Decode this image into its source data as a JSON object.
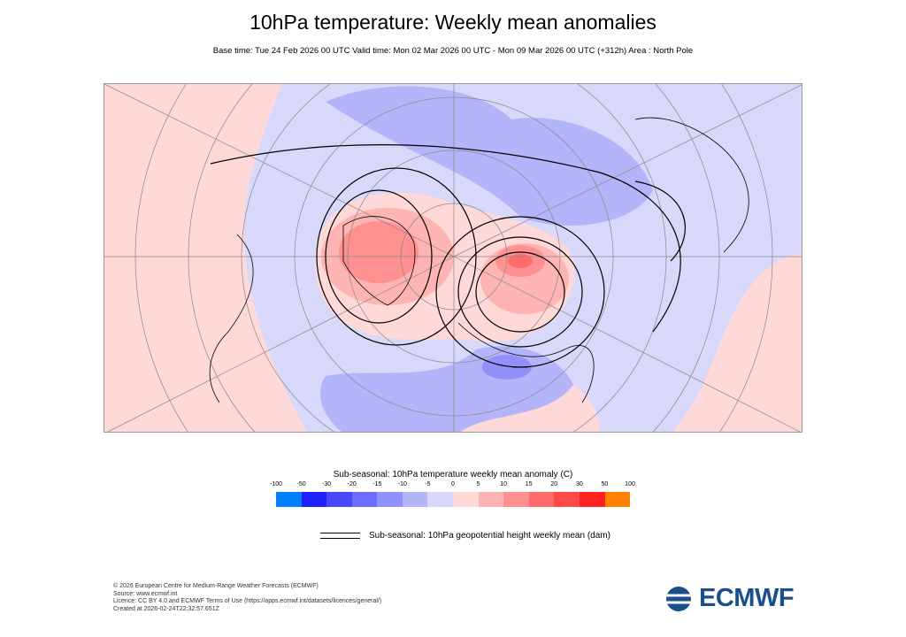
{
  "title": "10hPa temperature: Weekly mean anomalies",
  "subtitle": "Base time: Tue 24 Feb 2026 00 UTC Valid time: Mon 02 Mar 2026 00 UTC - Mon 09 Mar 2026 00 UTC (+312h) Area : North Pole",
  "map": {
    "projection": "polar stereographic",
    "area": "North Pole",
    "colors": {
      "background": "#d8d8fb",
      "warm_weak": "#ffd8d8",
      "cold_weak": "#b4b4fa",
      "cold": "#9090f8",
      "warm": "#ff9090",
      "warm_strong": "#ff6868"
    }
  },
  "colorbar": {
    "title": "Sub-seasonal: 10hPa temperature weekly mean anomaly (C)",
    "ticks": [
      "-100",
      "-50",
      "-30",
      "-20",
      "-15",
      "-10",
      "-5",
      "0",
      "5",
      "10",
      "15",
      "20",
      "30",
      "50",
      "100"
    ],
    "colors": [
      "#0080ff",
      "#2020ff",
      "#4848ff",
      "#6c6cff",
      "#9090ff",
      "#b4b4fa",
      "#d8d8fb",
      "#ffd8d8",
      "#ffb4b4",
      "#ff9090",
      "#ff6c6c",
      "#ff4848",
      "#ff2020",
      "#ff8000"
    ]
  },
  "contour_legend": "Sub-seasonal: 10hPa geopotential height weekly mean (dam)",
  "footer": [
    "© 2026 European Centre for Medium-Range Weather Forecasts (ECMWF)",
    "Source: www.ecmwf.int",
    "Licence: CC BY 4.0 and ECMWF Terms of Use (https://apps.ecmwf.int/datasets/licences/general/)",
    "Created at 2026-02-24T22:32:57.651Z"
  ],
  "logo": "ECMWF"
}
